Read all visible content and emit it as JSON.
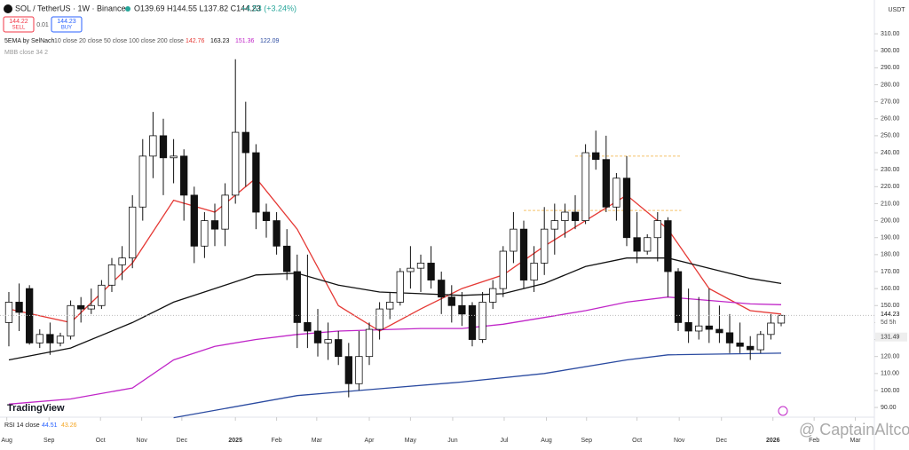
{
  "header": {
    "symbol": "SOL / TetherUS · 1W · Binance",
    "ohlc": "O139.69 H144.55 L137.82 C144.23",
    "change": "+4.53 (+3.24%)",
    "sell_price": "144.22",
    "sell": "SELL",
    "spread": "0.01",
    "buy_price": "144.23",
    "buy": "BUY",
    "currency": "USDT"
  },
  "indicators": {
    "ema_title": "5EMA by SelNach",
    "ema_params": "10 close 20 close 50 close 100 close 200 close",
    "mbb": "MBB close 34 2",
    "rsi": "RSI 14 close",
    "rsi_values": [
      {
        "value": 44.51,
        "color": "#2962ff"
      },
      {
        "value": 43.26,
        "color": "#f5a623"
      }
    ]
  },
  "branding": {
    "logo": "TradingView",
    "watermark": "@ CaptainAltcoin"
  },
  "chart_data": {
    "type": "candlestick",
    "categories": [
      null,
      null,
      null,
      null,
      null,
      null,
      null,
      null,
      null,
      null,
      null,
      null,
      null,
      null,
      null,
      null,
      null,
      null,
      null,
      null,
      null,
      null,
      null,
      null,
      null,
      null,
      null,
      null,
      null,
      null,
      null,
      null,
      null,
      null,
      null,
      null,
      null,
      null,
      null,
      null,
      null,
      null,
      null,
      null,
      null,
      null,
      null,
      null,
      null,
      null,
      null,
      null,
      null,
      null,
      null,
      null,
      null,
      null,
      null,
      null,
      null,
      null,
      null,
      null,
      null,
      null,
      null,
      null,
      null,
      null,
      null,
      null,
      null,
      null,
      null,
      null
    ],
    "open": [
      140,
      152,
      160,
      128,
      133,
      128,
      132,
      150,
      148,
      150,
      162,
      174,
      178,
      208,
      238,
      250,
      237,
      238,
      215,
      185,
      200,
      195,
      215,
      252,
      240,
      205,
      200,
      185,
      170,
      140,
      135,
      128,
      130,
      120,
      104,
      120,
      136,
      148,
      152,
      170,
      172,
      175,
      165,
      155,
      150,
      150,
      130,
      152,
      160,
      182,
      195,
      165,
      175,
      195,
      200,
      205,
      200,
      240,
      236,
      208,
      225,
      190,
      182,
      190,
      200,
      170,
      140,
      135,
      138,
      136,
      134,
      128,
      126,
      124,
      133,
      139.69
    ],
    "high": [
      158,
      163,
      162,
      136,
      140,
      134,
      153,
      155,
      160,
      165,
      178,
      185,
      215,
      248,
      264,
      260,
      248,
      242,
      220,
      205,
      210,
      222,
      295,
      270,
      245,
      210,
      205,
      195,
      180,
      180,
      148,
      140,
      135,
      128,
      135,
      140,
      152,
      158,
      172,
      185,
      180,
      185,
      170,
      162,
      158,
      152,
      158,
      165,
      185,
      205,
      200,
      185,
      208,
      210,
      210,
      215,
      245,
      253,
      250,
      228,
      238,
      205,
      192,
      205,
      202,
      172,
      160,
      155,
      160,
      150,
      145,
      140,
      132,
      135,
      145,
      144.55
    ],
    "low": [
      126,
      135,
      127,
      125,
      121,
      126,
      130,
      140,
      145,
      148,
      158,
      165,
      172,
      200,
      225,
      215,
      222,
      200,
      175,
      178,
      185,
      185,
      210,
      220,
      195,
      190,
      180,
      165,
      125,
      125,
      120,
      118,
      115,
      96,
      100,
      115,
      130,
      142,
      150,
      160,
      158,
      160,
      145,
      140,
      138,
      126,
      128,
      148,
      155,
      175,
      160,
      158,
      168,
      180,
      190,
      195,
      198,
      230,
      205,
      200,
      185,
      175,
      180,
      176,
      155,
      135,
      128,
      130,
      128,
      128,
      122,
      122,
      118,
      122,
      130,
      137.82
    ],
    "close": [
      152,
      146,
      128,
      133,
      128,
      132,
      150,
      148,
      150,
      162,
      174,
      178,
      208,
      238,
      250,
      237,
      238,
      215,
      185,
      200,
      195,
      215,
      252,
      240,
      205,
      200,
      185,
      170,
      140,
      135,
      128,
      130,
      120,
      104,
      120,
      136,
      148,
      152,
      170,
      172,
      175,
      165,
      155,
      150,
      145,
      130,
      152,
      160,
      182,
      195,
      165,
      175,
      195,
      200,
      205,
      200,
      240,
      236,
      208,
      225,
      190,
      182,
      190,
      200,
      170,
      140,
      135,
      138,
      136,
      134,
      128,
      126,
      124,
      133,
      139.69,
      144.23
    ],
    "lines": [
      {
        "color": "#e53935",
        "value_now": 142.76,
        "x": [
          0,
          6,
          12,
          16,
          20,
          24,
          28,
          32,
          36,
          40,
          44,
          48,
          52,
          56,
          60,
          64,
          68,
          72,
          75
        ],
        "values": [
          148,
          140,
          175,
          212,
          205,
          225,
          195,
          150,
          135,
          148,
          160,
          168,
          185,
          200,
          215,
          195,
          160,
          147,
          145
        ]
      },
      {
        "color": "#111111",
        "value_now": 163.23,
        "x": [
          0,
          6,
          12,
          16,
          20,
          24,
          28,
          32,
          36,
          40,
          44,
          48,
          52,
          56,
          60,
          64,
          68,
          72,
          75
        ],
        "values": [
          118,
          125,
          140,
          152,
          160,
          168,
          169,
          162,
          158,
          157,
          156,
          157,
          163,
          173,
          178,
          178,
          172,
          166,
          163
        ]
      },
      {
        "color": "#c026c8",
        "value_now": 151.36,
        "x": [
          0,
          6,
          12,
          16,
          20,
          24,
          28,
          32,
          40,
          44,
          48,
          52,
          56,
          60,
          64,
          68,
          72,
          75
        ],
        "values": [
          92,
          95,
          101.5,
          118,
          126,
          130,
          133,
          135,
          136.5,
          136.5,
          139,
          143,
          147,
          152,
          155,
          153,
          151,
          150.5
        ]
      },
      {
        "color": "#2a4aa0",
        "value_now": 122.09,
        "x": [
          16,
          28,
          36,
          44,
          52,
          60,
          64,
          75
        ],
        "values": [
          84,
          97,
          101,
          105,
          110,
          118,
          121,
          122
        ]
      }
    ],
    "levels": [
      {
        "value": 238,
        "from": 55,
        "to": 65.3,
        "color": "#f5c26b"
      },
      {
        "value": 206,
        "from": 50,
        "to": 65.3,
        "color": "#f5c26b"
      }
    ],
    "last_price": 144.23,
    "countdown": "5d 5h",
    "marker_price": 131.49,
    "xlim": [
      -0.86,
      84.05
    ],
    "ylim": [
      84.3,
      329.9
    ],
    "yticks": [
      {
        "value": 90,
        "label": "90.00"
      },
      {
        "value": 100,
        "label": "100.00"
      },
      {
        "value": 110,
        "label": "110.00"
      },
      {
        "value": 120,
        "label": "120.00"
      },
      {
        "value": 130,
        "label": "130.00"
      },
      {
        "value": 140,
        "label": "140.00"
      },
      {
        "value": 150,
        "label": "150.00"
      },
      {
        "value": 160,
        "label": "160.00"
      },
      {
        "value": 170,
        "label": "170.00"
      },
      {
        "value": 180,
        "label": "180.00"
      },
      {
        "value": 190,
        "label": "190.00"
      },
      {
        "value": 200,
        "label": "200.00"
      },
      {
        "value": 210,
        "label": "210.00"
      },
      {
        "value": 220,
        "label": "220.00"
      },
      {
        "value": 230,
        "label": "230.00"
      },
      {
        "value": 240,
        "label": "240.00"
      },
      {
        "value": 250,
        "label": "250.00"
      },
      {
        "value": 260,
        "label": "260.00"
      },
      {
        "value": 270,
        "label": "270.00"
      },
      {
        "value": 280,
        "label": "280.00"
      },
      {
        "value": 290,
        "label": "290.00"
      },
      {
        "value": 300,
        "label": "300.00"
      },
      {
        "value": 310,
        "label": "310.00"
      }
    ],
    "xticks": [
      {
        "value": -0.2,
        "label": "Aug"
      },
      {
        "value": 3.9,
        "label": "Sep"
      },
      {
        "value": 8.9,
        "label": "Oct"
      },
      {
        "value": 12.9,
        "label": "Nov"
      },
      {
        "value": 16.8,
        "label": "Dec"
      },
      {
        "value": 22,
        "label": "2025"
      },
      {
        "value": 26,
        "label": "Feb"
      },
      {
        "value": 29.9,
        "label": "Mar"
      },
      {
        "value": 35,
        "label": "Apr"
      },
      {
        "value": 39,
        "label": "May"
      },
      {
        "value": 43.1,
        "label": "Jun"
      },
      {
        "value": 48.1,
        "label": "Jul"
      },
      {
        "value": 52.2,
        "label": "Aug"
      },
      {
        "value": 56.1,
        "label": "Sep"
      },
      {
        "value": 61,
        "label": "Oct"
      },
      {
        "value": 65.1,
        "label": "Nov"
      },
      {
        "value": 69.2,
        "label": "Dec"
      },
      {
        "value": 74.2,
        "label": "2026"
      },
      {
        "value": 78.2,
        "label": "Feb"
      },
      {
        "value": 82.2,
        "label": "Mar"
      }
    ]
  }
}
